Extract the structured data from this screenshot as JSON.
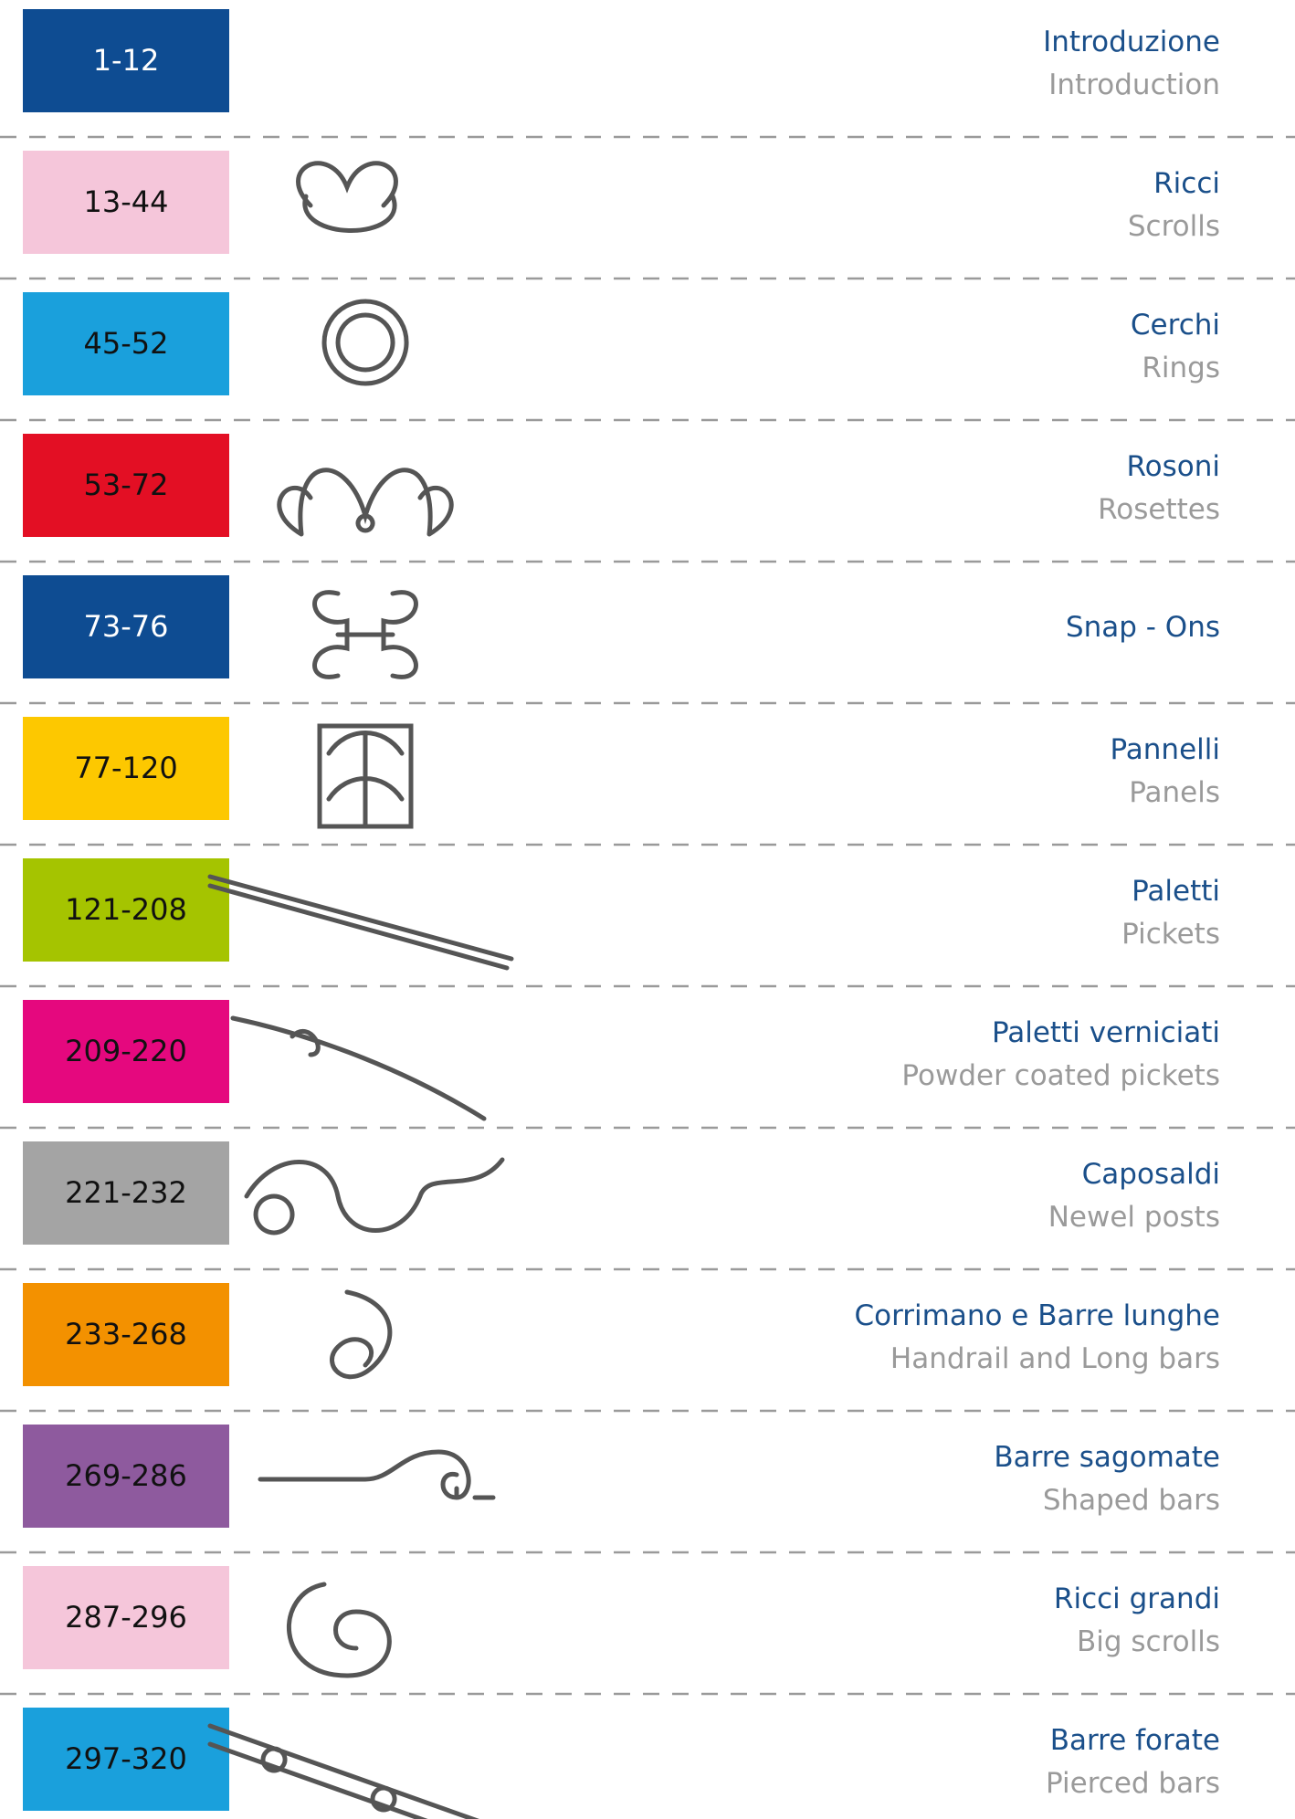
{
  "rows": [
    {
      "range": "1-12",
      "color": "#0e4c92",
      "text_color": "#ffffff",
      "title": "Introduzione",
      "subtitle": "Introduction"
    },
    {
      "range": "13-44",
      "color": "#f5c6da",
      "text_color": "#111111",
      "title": "Ricci",
      "subtitle": "Scrolls"
    },
    {
      "range": "45-52",
      "color": "#1aa0dc",
      "text_color": "#111111",
      "title": "Cerchi",
      "subtitle": "Rings"
    },
    {
      "range": "53-72",
      "color": "#e30f24",
      "text_color": "#111111",
      "title": "Rosoni",
      "subtitle": "Rosettes"
    },
    {
      "range": "73-76",
      "color": "#0e4c92",
      "text_color": "#ffffff",
      "title": "Snap - Ons"
    },
    {
      "range": "77-120",
      "color": "#fdc800",
      "text_color": "#111111",
      "title": "Pannelli",
      "subtitle": "Panels"
    },
    {
      "range": "121-208",
      "color": "#a5c400",
      "text_color": "#111111",
      "title": "Paletti",
      "subtitle": "Pickets"
    },
    {
      "range": "209-220",
      "color": "#e5087e",
      "text_color": "#111111",
      "title": "Paletti verniciati",
      "subtitle": "Powder coated pickets"
    },
    {
      "range": "221-232",
      "color": "#a4a4a4",
      "text_color": "#111111",
      "title": "Caposaldi",
      "subtitle": "Newel posts"
    },
    {
      "range": "233-268",
      "color": "#f39100",
      "text_color": "#111111",
      "title": "Corrimano e Barre lunghe",
      "subtitle": "Handrail and Long bars"
    },
    {
      "range": "269-286",
      "color": "#8e5a9e",
      "text_color": "#111111",
      "title": "Barre sagomate",
      "subtitle": "Shaped bars"
    },
    {
      "range": "287-296",
      "color": "#f5c6da",
      "text_color": "#111111",
      "title": "Ricci grandi",
      "subtitle": "Big scrolls"
    },
    {
      "range": "297-320",
      "color": "#1aa0dc",
      "text_color": "#111111",
      "title": "Barre forate",
      "subtitle": "Pierced bars"
    }
  ]
}
